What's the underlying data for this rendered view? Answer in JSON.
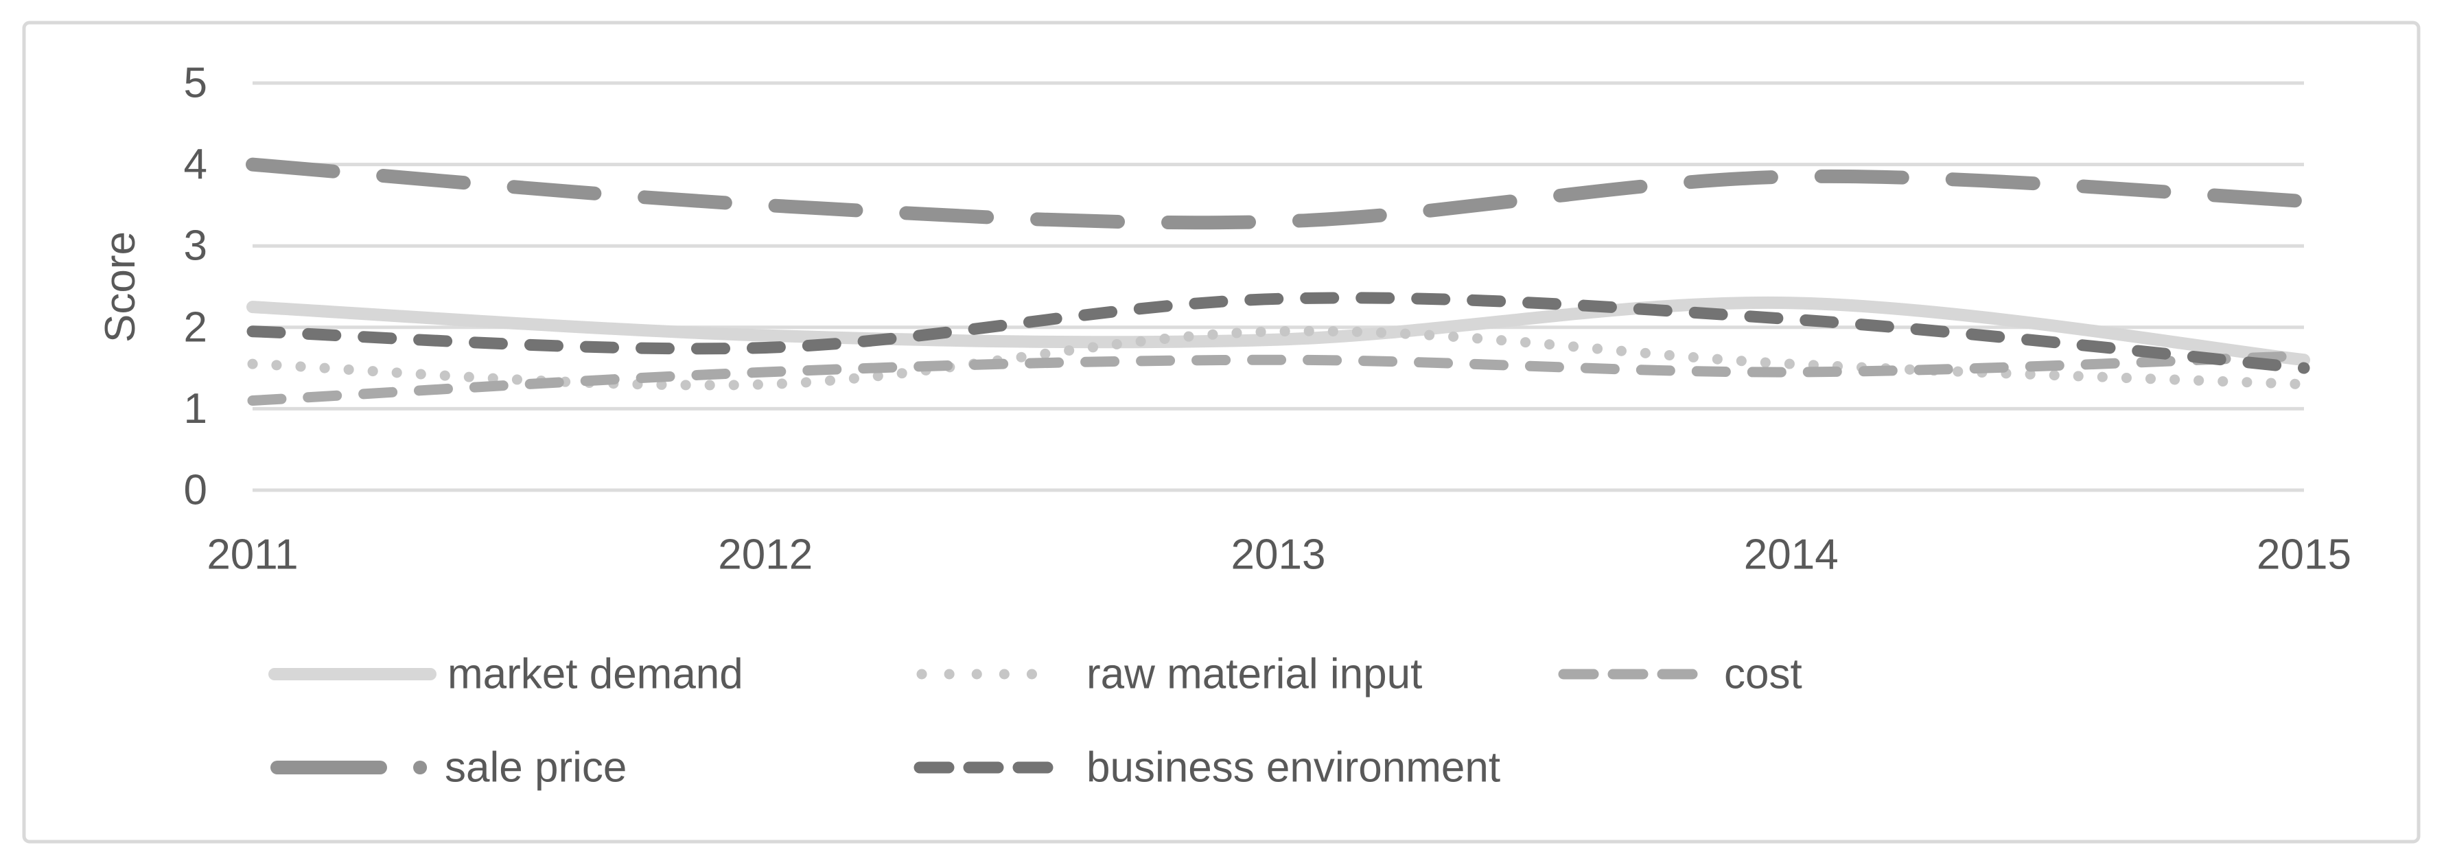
{
  "chart_data": {
    "type": "line",
    "title": "",
    "xlabel": "",
    "ylabel": "Score",
    "ylim": [
      0,
      5
    ],
    "yticks": [
      0,
      1,
      2,
      3,
      4,
      5
    ],
    "grid": "horizontal",
    "smoothed_lines": true,
    "categories": [
      "2011",
      "2012",
      "2013",
      "2014",
      "2015"
    ],
    "series": [
      {
        "name": "market demand",
        "values": [
          2.25,
          1.9,
          1.85,
          2.3,
          1.6
        ],
        "color": "#d7d7d7",
        "dash": "solid",
        "width": 18
      },
      {
        "name": "raw material input",
        "values": [
          1.55,
          1.3,
          1.95,
          1.55,
          1.3
        ],
        "color": "#c6c6c6",
        "dash": "dot",
        "width": 15
      },
      {
        "name": "cost",
        "values": [
          1.1,
          1.45,
          1.6,
          1.45,
          1.65
        ],
        "color": "#a9a9a9",
        "dash": "dash",
        "width": 15
      },
      {
        "name": "sale price",
        "values": [
          4.0,
          3.5,
          3.3,
          3.85,
          3.55
        ],
        "color": "#929292",
        "dash": "long-dash-dot",
        "width": 20
      },
      {
        "name": "business environment",
        "values": [
          1.95,
          1.75,
          2.35,
          2.1,
          1.5
        ],
        "color": "#737373",
        "dash": "dash",
        "width": 17
      }
    ],
    "legend": {
      "position": "bottom",
      "rows": [
        [
          "market demand",
          "raw material input",
          "cost"
        ],
        [
          "sale price",
          "business environment"
        ]
      ]
    },
    "colors": {
      "gridline": "#dcdcdc",
      "border": "#d9d9d9",
      "text": "#595959",
      "background": "#ffffff"
    }
  }
}
